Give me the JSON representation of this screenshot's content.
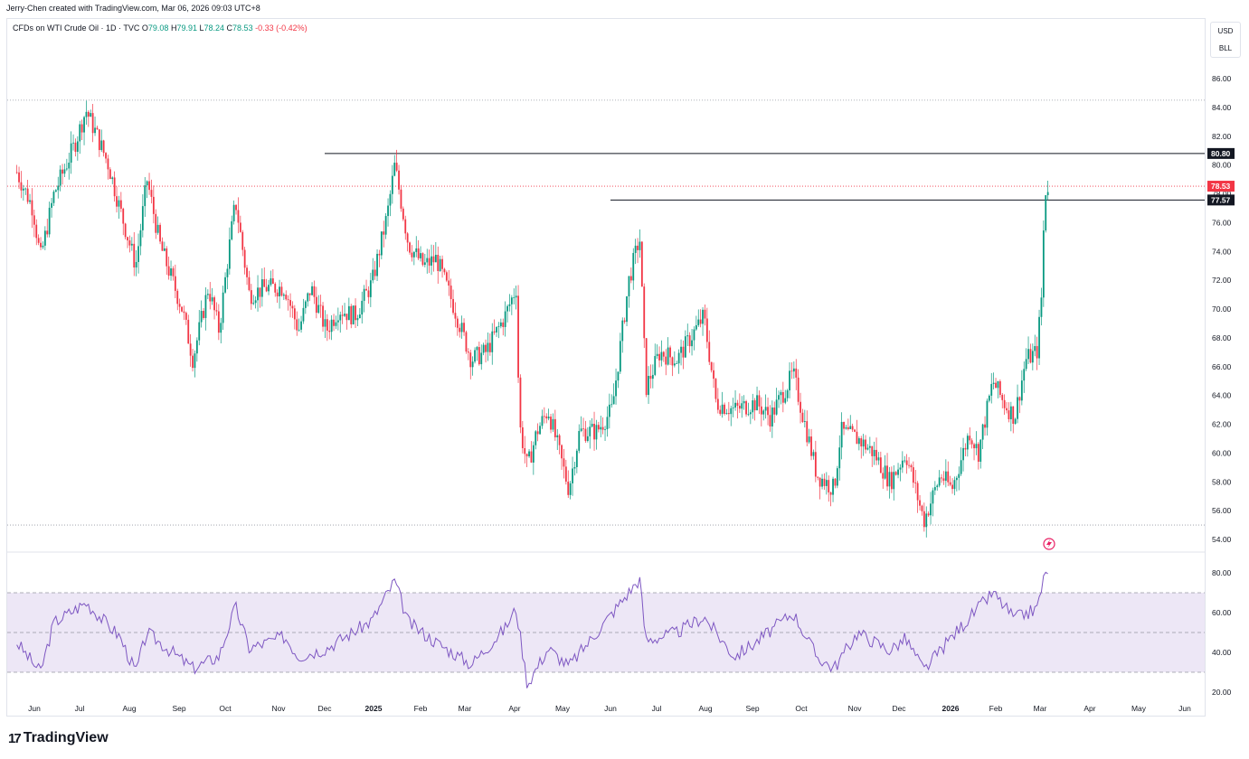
{
  "header": {
    "text": "Jerry-Chen created with TradingView.com, Mar 06, 2026 09:03 UTC+8"
  },
  "legend": {
    "symbol": "CFDs on WTI Crude Oil · 1D · TVC",
    "open_label": "O",
    "open": "79.08",
    "high_label": "H",
    "high": "79.91",
    "low_label": "L",
    "low": "78.24",
    "close_label": "C",
    "close": "78.53",
    "change": "-0.33 (-0.42%)"
  },
  "units": {
    "currency": "USD",
    "unit": "BLL"
  },
  "footer": {
    "brand": "TradingView",
    "logo_icon": "tradingview-logo-icon"
  },
  "colors": {
    "up": "#089981",
    "down": "#f23645",
    "rsi": "#7e57c2",
    "rsi_band": "#ede7f6",
    "hline": "#131722"
  },
  "chart_data": {
    "type": "candlestick",
    "price_axis": {
      "ylim": [
        54,
        86
      ],
      "ticks": [
        "86.00",
        "84.00",
        "82.00",
        "80.00",
        "78.00",
        "76.00",
        "74.00",
        "72.00",
        "70.00",
        "68.00",
        "66.00",
        "64.00",
        "62.00",
        "60.00",
        "58.00",
        "56.00",
        "54.00"
      ]
    },
    "x_ticks": [
      "Jun",
      "Jul",
      "Aug",
      "Sep",
      "Oct",
      "Nov",
      "Dec",
      "2025",
      "Feb",
      "Mar",
      "Apr",
      "May",
      "Jun",
      "Jul",
      "Aug",
      "Sep",
      "Oct",
      "Nov",
      "Dec",
      "2026",
      "Feb",
      "Mar",
      "Apr",
      "May",
      "Jun"
    ],
    "x_bold": [
      "2025",
      "2026"
    ],
    "horizontal_lines": [
      {
        "price": 80.8,
        "label": "80.80",
        "from": "2024-12-01",
        "to": "2026-06"
      },
      {
        "price": 77.57,
        "label": "77.57",
        "from": "2025-06-01",
        "to": "2026-06"
      }
    ],
    "last_price": {
      "price": 78.53,
      "label": "78.53"
    },
    "dotted_levels": [
      84.5,
      55.0
    ],
    "price_path": [
      [
        "2024-05-20",
        79.5
      ],
      [
        "2024-05-31",
        77.0
      ],
      [
        "2024-06-05",
        73.5
      ],
      [
        "2024-06-14",
        78.0
      ],
      [
        "2024-06-28",
        81.5
      ],
      [
        "2024-07-05",
        83.8
      ],
      [
        "2024-07-12",
        82.0
      ],
      [
        "2024-07-19",
        80.0
      ],
      [
        "2024-07-26",
        77.0
      ],
      [
        "2024-08-05",
        73.0
      ],
      [
        "2024-08-12",
        79.0
      ],
      [
        "2024-08-20",
        74.5
      ],
      [
        "2024-09-03",
        70.0
      ],
      [
        "2024-09-10",
        66.5
      ],
      [
        "2024-09-20",
        71.5
      ],
      [
        "2024-09-27",
        68.5
      ],
      [
        "2024-10-03",
        74.0
      ],
      [
        "2024-10-07",
        77.5
      ],
      [
        "2024-10-15",
        71.0
      ],
      [
        "2024-10-25",
        71.5
      ],
      [
        "2024-11-05",
        71.5
      ],
      [
        "2024-11-14",
        68.5
      ],
      [
        "2024-11-22",
        71.5
      ],
      [
        "2024-12-02",
        68.5
      ],
      [
        "2024-12-10",
        70.0
      ],
      [
        "2024-12-20",
        69.5
      ],
      [
        "2024-12-31",
        71.8
      ],
      [
        "2025-01-10",
        76.5
      ],
      [
        "2025-01-15",
        80.0
      ],
      [
        "2025-01-24",
        74.5
      ],
      [
        "2025-02-03",
        73.0
      ],
      [
        "2025-02-11",
        73.5
      ],
      [
        "2025-02-21",
        70.5
      ],
      [
        "2025-03-05",
        66.5
      ],
      [
        "2025-03-14",
        67.0
      ],
      [
        "2025-03-26",
        69.5
      ],
      [
        "2025-04-02",
        71.5
      ],
      [
        "2025-04-04",
        62.0
      ],
      [
        "2025-04-09",
        59.0
      ],
      [
        "2025-04-15",
        61.5
      ],
      [
        "2025-04-22",
        63.0
      ],
      [
        "2025-05-05",
        57.5
      ],
      [
        "2025-05-12",
        61.5
      ],
      [
        "2025-05-23",
        61.5
      ],
      [
        "2025-06-02",
        63.0
      ],
      [
        "2025-06-13",
        72.0
      ],
      [
        "2025-06-20",
        75.0
      ],
      [
        "2025-06-24",
        64.5
      ],
      [
        "2025-07-03",
        67.0
      ],
      [
        "2025-07-14",
        66.5
      ],
      [
        "2025-07-31",
        69.5
      ],
      [
        "2025-08-08",
        63.5
      ],
      [
        "2025-08-20",
        63.0
      ],
      [
        "2025-09-03",
        63.5
      ],
      [
        "2025-09-12",
        62.5
      ],
      [
        "2025-09-26",
        65.5
      ],
      [
        "2025-10-10",
        58.5
      ],
      [
        "2025-10-20",
        57.5
      ],
      [
        "2025-10-24",
        61.5
      ],
      [
        "2025-11-03",
        61.0
      ],
      [
        "2025-11-14",
        60.0
      ],
      [
        "2025-11-25",
        58.0
      ],
      [
        "2025-12-05",
        60.0
      ],
      [
        "2025-12-16",
        55.3
      ],
      [
        "2025-12-26",
        58.5
      ],
      [
        "2026-01-02",
        57.5
      ],
      [
        "2026-01-14",
        61.5
      ],
      [
        "2026-01-20",
        60.0
      ],
      [
        "2026-01-30",
        65.0
      ],
      [
        "2026-02-06",
        63.5
      ],
      [
        "2026-02-13",
        62.5
      ],
      [
        "2026-02-20",
        66.5
      ],
      [
        "2026-02-27",
        67.0
      ],
      [
        "2026-03-02",
        71.0
      ],
      [
        "2026-03-03",
        75.0
      ],
      [
        "2026-03-04",
        77.5
      ],
      [
        "2026-03-05",
        78.9
      ],
      [
        "2026-03-06",
        78.53
      ]
    ],
    "rsi": {
      "ylim": [
        15,
        85
      ],
      "ticks": [
        "80.00",
        "60.00",
        "40.00",
        "20.00"
      ],
      "band": [
        30,
        70
      ],
      "mid": 50,
      "path": [
        [
          "2024-05-20",
          45
        ],
        [
          "2024-06-05",
          30
        ],
        [
          "2024-06-14",
          55
        ],
        [
          "2024-07-05",
          65
        ],
        [
          "2024-07-26",
          48
        ],
        [
          "2024-08-05",
          30
        ],
        [
          "2024-08-12",
          50
        ],
        [
          "2024-09-10",
          32
        ],
        [
          "2024-09-27",
          38
        ],
        [
          "2024-10-07",
          63
        ],
        [
          "2024-10-15",
          42
        ],
        [
          "2024-11-05",
          48
        ],
        [
          "2024-11-14",
          38
        ],
        [
          "2024-12-02",
          42
        ],
        [
          "2024-12-31",
          56
        ],
        [
          "2025-01-15",
          76
        ],
        [
          "2025-01-24",
          55
        ],
        [
          "2025-02-11",
          45
        ],
        [
          "2025-03-05",
          34
        ],
        [
          "2025-03-26",
          52
        ],
        [
          "2025-04-02",
          62
        ],
        [
          "2025-04-09",
          24
        ],
        [
          "2025-04-22",
          42
        ],
        [
          "2025-05-05",
          33
        ],
        [
          "2025-05-23",
          50
        ],
        [
          "2025-06-20",
          77
        ],
        [
          "2025-06-24",
          46
        ],
        [
          "2025-07-14",
          50
        ],
        [
          "2025-07-31",
          58
        ],
        [
          "2025-08-20",
          38
        ],
        [
          "2025-09-03",
          45
        ],
        [
          "2025-09-26",
          60
        ],
        [
          "2025-10-10",
          38
        ],
        [
          "2025-10-20",
          32
        ],
        [
          "2025-11-03",
          50
        ],
        [
          "2025-11-25",
          41
        ],
        [
          "2025-12-05",
          47
        ],
        [
          "2025-12-16",
          31
        ],
        [
          "2026-01-02",
          48
        ],
        [
          "2026-01-30",
          70
        ],
        [
          "2026-02-13",
          57
        ],
        [
          "2026-02-27",
          62
        ],
        [
          "2026-03-03",
          76
        ],
        [
          "2026-03-06",
          82
        ]
      ]
    }
  }
}
